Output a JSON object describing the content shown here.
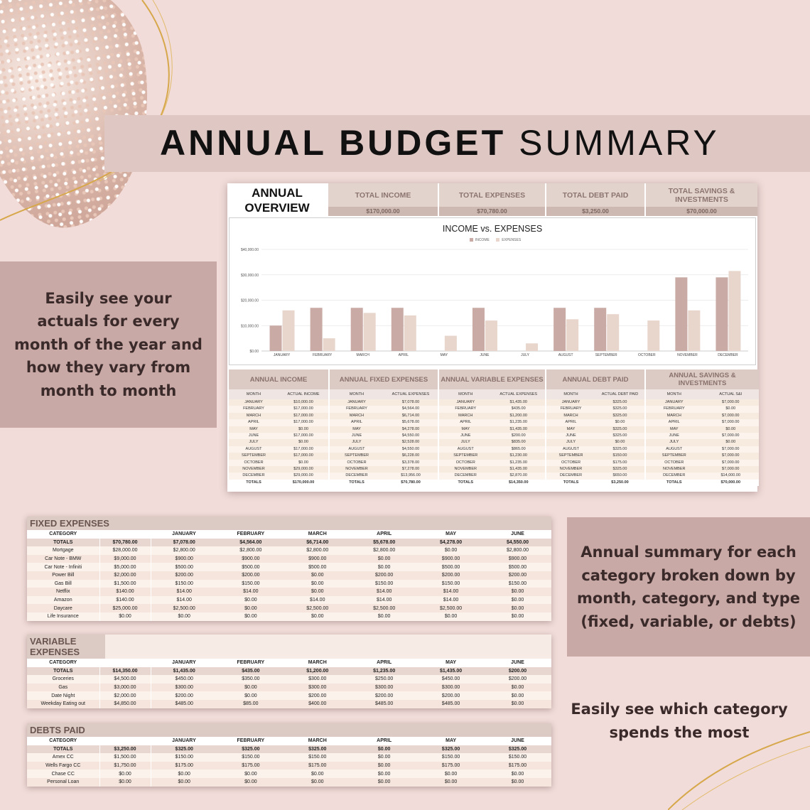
{
  "title": {
    "bold": "ANNUAL BUDGET",
    "light": "SUMMARY"
  },
  "callouts": {
    "left": "Easily see your actuals for every month of the year and how they vary from month to month",
    "right": "Annual summary for each category broken down by month, category, and type (fixed, variable,  or debts)",
    "bottom": "Easily see which category spends the most"
  },
  "overview": {
    "title_line1": "ANNUAL",
    "title_line2": "OVERVIEW",
    "kpis": [
      {
        "label": "TOTAL INCOME",
        "value": "$170,000.00"
      },
      {
        "label": "TOTAL EXPENSES",
        "value": "$70,780.00"
      },
      {
        "label": "TOTAL DEBT PAID",
        "value": "$3,250.00"
      },
      {
        "label": "TOTAL SAVINGS & INVESTMENTS",
        "value": "$70,000.00"
      }
    ]
  },
  "chart_data": {
    "type": "bar",
    "title": "INCOME vs. EXPENSES",
    "categories": [
      "JANUARY",
      "FEBRUARY",
      "MARCH",
      "APRIL",
      "MAY",
      "JUNE",
      "JULY",
      "AUGUST",
      "SEPTEMBER",
      "OCTOBER",
      "NOVEMBER",
      "DECEMBER"
    ],
    "series": [
      {
        "name": "INCOME",
        "color": "#c9aaa5",
        "values": [
          10000,
          17000,
          17000,
          17000,
          0,
          17000,
          0,
          17000,
          17000,
          0,
          29000,
          29000
        ]
      },
      {
        "name": "EXPENSES",
        "color": "#e8d6cc",
        "values": [
          16000,
          5000,
          15000,
          14000,
          6000,
          12000,
          3000,
          12500,
          14500,
          12000,
          16000,
          31500
        ]
      }
    ],
    "yticks": [
      "$0.00",
      "$10,000.00",
      "$20,000.00",
      "$30,000.00",
      "$40,000.00"
    ],
    "ylim": [
      0,
      40000
    ],
    "grid": true,
    "legend": "top"
  },
  "annual_panels": [
    {
      "title": "ANNUAL INCOME",
      "cols": [
        "MONTH",
        "ACTUAL INCOME"
      ],
      "rows": [
        [
          "JANUARY",
          "$10,000.00"
        ],
        [
          "FEBRUARY",
          "$17,000.00"
        ],
        [
          "MARCH",
          "$17,000.00"
        ],
        [
          "APRIL",
          "$17,000.00"
        ],
        [
          "MAY",
          "$0.00"
        ],
        [
          "JUNE",
          "$17,000.00"
        ],
        [
          "JULY",
          "$0.00"
        ],
        [
          "AUGUST",
          "$17,000.00"
        ],
        [
          "SEPTEMBER",
          "$17,000.00"
        ],
        [
          "OCTOBER",
          "$0.00"
        ],
        [
          "NOVEMBER",
          "$29,000.00"
        ],
        [
          "DECEMBER",
          "$29,000.00"
        ]
      ],
      "total": [
        "TOTALS",
        "$170,000.00"
      ]
    },
    {
      "title": "ANNUAL FIXED EXPENSES",
      "cols": [
        "MONTH",
        "ACTUAL EXPENSES"
      ],
      "rows": [
        [
          "JANUARY",
          "$7,078.00"
        ],
        [
          "FEBRUARY",
          "$4,564.00"
        ],
        [
          "MARCH",
          "$6,714.00"
        ],
        [
          "APRIL",
          "$5,678.00"
        ],
        [
          "MAY",
          "$4,278.00"
        ],
        [
          "JUNE",
          "$4,550.00"
        ],
        [
          "JULY",
          "$2,528.00"
        ],
        [
          "AUGUST",
          "$4,550.00"
        ],
        [
          "SEPTEMBER",
          "$6,228.00"
        ],
        [
          "OCTOBER",
          "$3,378.00"
        ],
        [
          "NOVEMBER",
          "$7,278.00"
        ],
        [
          "DECEMBER",
          "$13,956.00"
        ]
      ],
      "total": [
        "TOTALS",
        "$70,780.00"
      ]
    },
    {
      "title": "ANNUAL VARIABLE EXPENSES",
      "cols": [
        "MONTH",
        "ACTUAL EXPENSES"
      ],
      "rows": [
        [
          "JANUARY",
          "$1,435.00"
        ],
        [
          "FEBRUARY",
          "$435.00"
        ],
        [
          "MARCH",
          "$1,200.00"
        ],
        [
          "APRIL",
          "$1,235.00"
        ],
        [
          "MAY",
          "$1,435.00"
        ],
        [
          "JUNE",
          "$200.00"
        ],
        [
          "JULY",
          "$835.00"
        ],
        [
          "AUGUST",
          "$865.00"
        ],
        [
          "SEPTEMBER",
          "$1,230.00"
        ],
        [
          "OCTOBER",
          "$1,235.00"
        ],
        [
          "NOVEMBER",
          "$1,435.00"
        ],
        [
          "DECEMBER",
          "$2,870.00"
        ]
      ],
      "total": [
        "TOTALS",
        "$14,350.00"
      ]
    },
    {
      "title": "ANNUAL DEBT PAID",
      "cols": [
        "MONTH",
        "ACTUAL DEBT PAID"
      ],
      "rows": [
        [
          "JANUARY",
          "$325.00"
        ],
        [
          "FEBRUARY",
          "$325.00"
        ],
        [
          "MARCH",
          "$325.00"
        ],
        [
          "APRIL",
          "$0.00"
        ],
        [
          "MAY",
          "$325.00"
        ],
        [
          "JUNE",
          "$325.00"
        ],
        [
          "JULY",
          "$0.00"
        ],
        [
          "AUGUST",
          "$325.00"
        ],
        [
          "SEPTEMBER",
          "$150.00"
        ],
        [
          "OCTOBER",
          "$175.00"
        ],
        [
          "NOVEMBER",
          "$325.00"
        ],
        [
          "DECEMBER",
          "$650.00"
        ]
      ],
      "total": [
        "TOTALS",
        "$3,250.00"
      ]
    },
    {
      "title": "ANNUAL SAVINGS & INVESTMENTS",
      "cols": [
        "MONTH",
        "ACTUAL S&I"
      ],
      "rows": [
        [
          "JANUARY",
          "$7,000.00"
        ],
        [
          "FEBRUARY",
          "$0.00"
        ],
        [
          "MARCH",
          "$7,000.00"
        ],
        [
          "APRIL",
          "$7,000.00"
        ],
        [
          "MAY",
          "$0.00"
        ],
        [
          "JUNE",
          "$7,000.00"
        ],
        [
          "JULY",
          "$0.00"
        ],
        [
          "AUGUST",
          "$7,000.00"
        ],
        [
          "SEPTEMBER",
          "$7,000.00"
        ],
        [
          "OCTOBER",
          "$7,000.00"
        ],
        [
          "NOVEMBER",
          "$7,000.00"
        ],
        [
          "DECEMBER",
          "$14,000.00"
        ]
      ],
      "total": [
        "TOTALS",
        "$70,000.00"
      ]
    }
  ],
  "category_tables": [
    {
      "title": "FIXED EXPENSES",
      "header": [
        "CATEGORY",
        "",
        "JANUARY",
        "FEBRUARY",
        "MARCH",
        "APRIL",
        "MAY",
        "JUNE"
      ],
      "totals": [
        "TOTALS",
        "$70,780.00",
        "$7,078.00",
        "$4,564.00",
        "$6,714.00",
        "$5,678.00",
        "$4,278.00",
        "$4,550.00"
      ],
      "rows": [
        [
          "Mortgage",
          "$28,000.00",
          "$2,800.00",
          "$2,800.00",
          "$2,800.00",
          "$2,800.00",
          "$0.00",
          "$2,800.00"
        ],
        [
          "Car Note - BMW",
          "$9,000.00",
          "$900.00",
          "$900.00",
          "$900.00",
          "$0.00",
          "$900.00",
          "$900.00"
        ],
        [
          "Car Note - Infiniti",
          "$5,000.00",
          "$500.00",
          "$500.00",
          "$500.00",
          "$0.00",
          "$500.00",
          "$500.00"
        ],
        [
          "Power Bill",
          "$2,000.00",
          "$200.00",
          "$200.00",
          "$0.00",
          "$200.00",
          "$200.00",
          "$200.00"
        ],
        [
          "Gas Bill",
          "$1,500.00",
          "$150.00",
          "$150.00",
          "$0.00",
          "$150.00",
          "$150.00",
          "$150.00"
        ],
        [
          "Netflix",
          "$140.00",
          "$14.00",
          "$14.00",
          "$0.00",
          "$14.00",
          "$14.00",
          "$0.00"
        ],
        [
          "Amazon",
          "$140.00",
          "$14.00",
          "$0.00",
          "$14.00",
          "$14.00",
          "$14.00",
          "$0.00"
        ],
        [
          "Daycare",
          "$25,000.00",
          "$2,500.00",
          "$0.00",
          "$2,500.00",
          "$2,500.00",
          "$2,500.00",
          "$0.00"
        ],
        [
          "Life Insurance",
          "$0.00",
          "$0.00",
          "$0.00",
          "$0.00",
          "$0.00",
          "$0.00",
          "$0.00"
        ]
      ]
    },
    {
      "title": "VARIABLE EXPENSES",
      "header": [
        "CATEGORY",
        "",
        "JANUARY",
        "FEBRUARY",
        "MARCH",
        "APRIL",
        "MAY",
        "JUNE"
      ],
      "totals": [
        "TOTALS",
        "$14,350.00",
        "$1,435.00",
        "$435.00",
        "$1,200.00",
        "$1,235.00",
        "$1,435.00",
        "$200.00"
      ],
      "rows": [
        [
          "Groceries",
          "$4,500.00",
          "$450.00",
          "$350.00",
          "$300.00",
          "$250.00",
          "$450.00",
          "$200.00"
        ],
        [
          "Gas",
          "$3,000.00",
          "$300.00",
          "$0.00",
          "$300.00",
          "$300.00",
          "$300.00",
          "$0.00"
        ],
        [
          "Date Night",
          "$2,000.00",
          "$200.00",
          "$0.00",
          "$200.00",
          "$200.00",
          "$200.00",
          "$0.00"
        ],
        [
          "Weekday Eating out",
          "$4,850.00",
          "$485.00",
          "$85.00",
          "$400.00",
          "$485.00",
          "$485.00",
          "$0.00"
        ]
      ]
    },
    {
      "title": "DEBTS PAID",
      "header": [
        "CATEGORY",
        "",
        "JANUARY",
        "FEBRUARY",
        "MARCH",
        "APRIL",
        "MAY",
        "JUNE"
      ],
      "totals": [
        "TOTALS",
        "$3,250.00",
        "$325.00",
        "$325.00",
        "$325.00",
        "$0.00",
        "$325.00",
        "$325.00"
      ],
      "rows": [
        [
          "Amex CC",
          "$1,500.00",
          "$150.00",
          "$150.00",
          "$150.00",
          "$0.00",
          "$150.00",
          "$150.00"
        ],
        [
          "Wells Fargo CC",
          "$1,750.00",
          "$175.00",
          "$175.00",
          "$175.00",
          "$0.00",
          "$175.00",
          "$175.00"
        ],
        [
          "Chase CC",
          "$0.00",
          "$0.00",
          "$0.00",
          "$0.00",
          "$0.00",
          "$0.00",
          "$0.00"
        ],
        [
          "Personal Loan",
          "$0.00",
          "$0.00",
          "$0.00",
          "$0.00",
          "$0.00",
          "$0.00",
          "$0.00"
        ]
      ]
    }
  ]
}
